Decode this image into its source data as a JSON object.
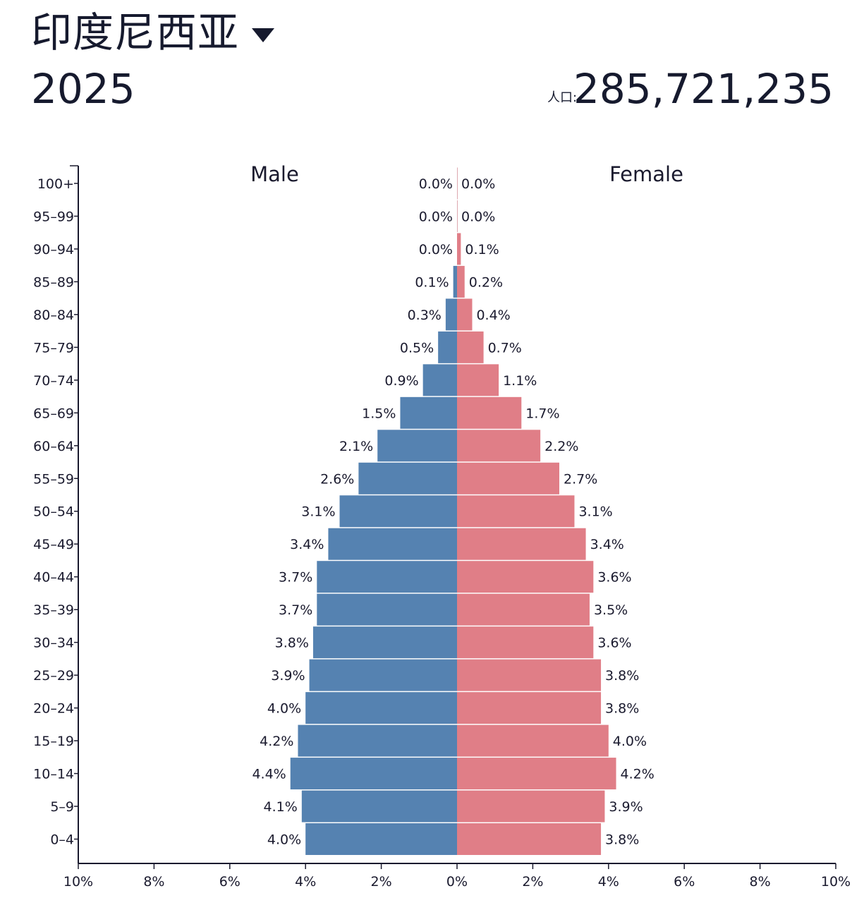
{
  "header": {
    "country": "印度尼西亚",
    "year": "2025",
    "population_label": "人口:",
    "population_value": "285,721,235"
  },
  "colors": {
    "male": "#5582b1",
    "female": "#e07e87",
    "text": "#1a1a2e"
  },
  "chart_data": {
    "type": "bar",
    "orientation": "horizontal",
    "categories": [
      "100+",
      "95–99",
      "90–94",
      "85–89",
      "80–84",
      "75–79",
      "70–74",
      "65–69",
      "60–64",
      "55–59",
      "50–54",
      "45–49",
      "40–44",
      "35–39",
      "30–34",
      "25–29",
      "20–24",
      "15–19",
      "10–14",
      "5–9",
      "0–4"
    ],
    "series": [
      {
        "name": "Male",
        "side": "left",
        "color": "#5582b1",
        "values": [
          0.0,
          0.0,
          0.0,
          0.1,
          0.3,
          0.5,
          0.9,
          1.5,
          2.1,
          2.6,
          3.1,
          3.4,
          3.7,
          3.7,
          3.8,
          3.9,
          4.0,
          4.2,
          4.4,
          4.1,
          4.0
        ],
        "labels": [
          "0.0%",
          "0.0%",
          "0.0%",
          "0.1%",
          "0.3%",
          "0.5%",
          "0.9%",
          "1.5%",
          "2.1%",
          "2.6%",
          "3.1%",
          "3.4%",
          "3.7%",
          "3.7%",
          "3.8%",
          "3.9%",
          "4.0%",
          "4.2%",
          "4.4%",
          "4.1%",
          "4.0%"
        ]
      },
      {
        "name": "Female",
        "side": "right",
        "color": "#e07e87",
        "values": [
          0.0,
          0.0,
          0.1,
          0.2,
          0.4,
          0.7,
          1.1,
          1.7,
          2.2,
          2.7,
          3.1,
          3.4,
          3.6,
          3.5,
          3.6,
          3.8,
          3.8,
          4.0,
          4.2,
          3.9,
          3.8
        ],
        "labels": [
          "0.0%",
          "0.0%",
          "0.1%",
          "0.2%",
          "0.4%",
          "0.7%",
          "1.1%",
          "1.7%",
          "2.2%",
          "2.7%",
          "3.1%",
          "3.4%",
          "3.6%",
          "3.5%",
          "3.6%",
          "3.8%",
          "3.8%",
          "4.0%",
          "4.2%",
          "3.9%",
          "3.8%"
        ]
      }
    ],
    "xlim": [
      -10,
      10
    ],
    "x_ticks": [
      -10,
      -8,
      -6,
      -4,
      -2,
      0,
      2,
      4,
      6,
      8,
      10
    ],
    "x_tick_labels": [
      "10%",
      "8%",
      "6%",
      "4%",
      "2%",
      "0%",
      "2%",
      "4%",
      "6%",
      "8%",
      "10%"
    ],
    "grid": false
  }
}
